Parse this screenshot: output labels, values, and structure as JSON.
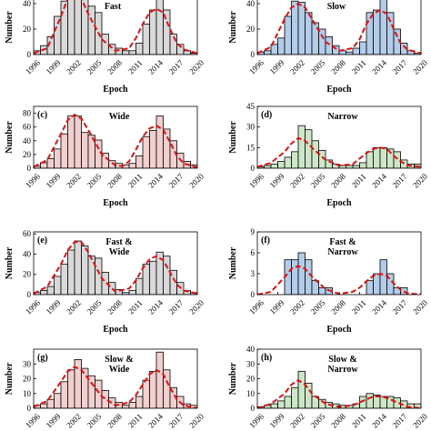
{
  "colors": {
    "gray": "#d9d9d9",
    "blue": "#b3cce8",
    "pink": "#f2d0d0",
    "green": "#cde6c8",
    "curve": "#dd1111",
    "edge": "#000000"
  },
  "chart_data": [
    {
      "type": "bar",
      "panel_tag": "",
      "panel_name": "Fast",
      "name_lines": [
        "Fast"
      ],
      "fill": "gray",
      "xlabel": "Epoch",
      "ylabel": "Number",
      "xlim": [
        1996,
        2020
      ],
      "xticks": [
        1996,
        1999,
        2002,
        2005,
        2008,
        2011,
        2014,
        2017,
        2020
      ],
      "ylim": [
        0,
        50
      ],
      "yticks": [
        0,
        20,
        40
      ],
      "bin_width": 1,
      "bin_starts": [
        1996,
        1997,
        1998,
        1999,
        2000,
        2001,
        2002,
        2003,
        2004,
        2005,
        2006,
        2007,
        2008,
        2009,
        2010,
        2011,
        2012,
        2013,
        2014,
        2015,
        2016,
        2017,
        2018,
        2019
      ],
      "values": [
        3,
        7,
        14,
        30,
        42,
        48,
        50,
        44,
        38,
        33,
        16,
        8,
        5,
        3,
        3,
        9,
        24,
        35,
        50,
        35,
        16,
        8,
        3,
        1
      ],
      "fit_curve": [
        {
          "x": 1996,
          "y": 1
        },
        {
          "x": 1998,
          "y": 5
        },
        {
          "x": 2000,
          "y": 30
        },
        {
          "x": 2001,
          "y": 44
        },
        {
          "x": 2002,
          "y": 48
        },
        {
          "x": 2003,
          "y": 44
        },
        {
          "x": 2004,
          "y": 32
        },
        {
          "x": 2006,
          "y": 12
        },
        {
          "x": 2008,
          "y": 3
        },
        {
          "x": 2010,
          "y": 5
        },
        {
          "x": 2011,
          "y": 13
        },
        {
          "x": 2012,
          "y": 24
        },
        {
          "x": 2013,
          "y": 33
        },
        {
          "x": 2014,
          "y": 36
        },
        {
          "x": 2015,
          "y": 33
        },
        {
          "x": 2016,
          "y": 20
        },
        {
          "x": 2017,
          "y": 9
        },
        {
          "x": 2018,
          "y": 4
        },
        {
          "x": 2020,
          "y": 1
        }
      ]
    },
    {
      "type": "bar",
      "panel_tag": "",
      "panel_name": "Slow",
      "name_lines": [
        "Slow"
      ],
      "fill": "blue",
      "xlabel": "Epoch",
      "ylabel": "Number",
      "xlim": [
        1996,
        2020
      ],
      "xticks": [
        1996,
        1999,
        2002,
        2005,
        2008,
        2011,
        2014,
        2017,
        2020
      ],
      "ylim": [
        0,
        50
      ],
      "yticks": [
        0,
        20,
        40
      ],
      "bin_width": 1,
      "bin_starts": [
        1996,
        1997,
        1998,
        1999,
        2000,
        2001,
        2002,
        2003,
        2004,
        2005,
        2006,
        2007,
        2008,
        2009,
        2010,
        2011,
        2012,
        2013,
        2014,
        2015,
        2016,
        2017,
        2018,
        2019
      ],
      "values": [
        2,
        3,
        8,
        13,
        30,
        42,
        41,
        33,
        25,
        20,
        14,
        7,
        3,
        2,
        5,
        10,
        33,
        35,
        47,
        33,
        20,
        9,
        3,
        1
      ],
      "fit_curve": [
        {
          "x": 1996,
          "y": 1
        },
        {
          "x": 1998,
          "y": 6
        },
        {
          "x": 2000,
          "y": 28
        },
        {
          "x": 2001,
          "y": 37
        },
        {
          "x": 2002,
          "y": 40
        },
        {
          "x": 2003,
          "y": 37
        },
        {
          "x": 2004,
          "y": 28
        },
        {
          "x": 2006,
          "y": 10
        },
        {
          "x": 2008,
          "y": 3
        },
        {
          "x": 2010,
          "y": 5
        },
        {
          "x": 2011,
          "y": 12
        },
        {
          "x": 2012,
          "y": 24
        },
        {
          "x": 2013,
          "y": 32
        },
        {
          "x": 2014,
          "y": 35
        },
        {
          "x": 2015,
          "y": 32
        },
        {
          "x": 2016,
          "y": 20
        },
        {
          "x": 2017,
          "y": 9
        },
        {
          "x": 2018,
          "y": 4
        },
        {
          "x": 2020,
          "y": 1
        }
      ]
    },
    {
      "type": "bar",
      "panel_tag": "(c)",
      "panel_name": "Wide",
      "name_lines": [
        "Wide"
      ],
      "fill": "pink",
      "xlabel": "Epoch",
      "ylabel": "Number",
      "xlim": [
        1996,
        2020
      ],
      "xticks": [
        1996,
        1999,
        2002,
        2005,
        2008,
        2011,
        2014,
        2017,
        2020
      ],
      "ylim": [
        0,
        90
      ],
      "yticks": [
        0,
        20,
        40,
        60,
        80
      ],
      "bin_width": 1,
      "bin_starts": [
        1996,
        1997,
        1998,
        1999,
        2000,
        2001,
        2002,
        2003,
        2004,
        2005,
        2006,
        2007,
        2008,
        2009,
        2010,
        2011,
        2012,
        2013,
        2014,
        2015,
        2016,
        2017,
        2018,
        2019
      ],
      "values": [
        3,
        8,
        14,
        28,
        50,
        76,
        76,
        52,
        48,
        41,
        22,
        11,
        7,
        5,
        7,
        18,
        46,
        55,
        76,
        57,
        40,
        22,
        10,
        5
      ],
      "fit_curve": [
        {
          "x": 1996,
          "y": 2
        },
        {
          "x": 1998,
          "y": 12
        },
        {
          "x": 2000,
          "y": 50
        },
        {
          "x": 2001,
          "y": 70
        },
        {
          "x": 2002,
          "y": 78
        },
        {
          "x": 2003,
          "y": 72
        },
        {
          "x": 2004,
          "y": 56
        },
        {
          "x": 2006,
          "y": 20
        },
        {
          "x": 2008,
          "y": 4
        },
        {
          "x": 2009,
          "y": 3
        },
        {
          "x": 2010,
          "y": 10
        },
        {
          "x": 2011,
          "y": 27
        },
        {
          "x": 2012,
          "y": 46
        },
        {
          "x": 2013,
          "y": 58
        },
        {
          "x": 2014,
          "y": 62
        },
        {
          "x": 2015,
          "y": 56
        },
        {
          "x": 2016,
          "y": 38
        },
        {
          "x": 2017,
          "y": 18
        },
        {
          "x": 2018,
          "y": 7
        },
        {
          "x": 2020,
          "y": 1
        }
      ]
    },
    {
      "type": "bar",
      "panel_tag": "(d)",
      "panel_name": "Narrow",
      "name_lines": [
        "Narrow"
      ],
      "fill": "green",
      "xlabel": "Epoch",
      "ylabel": "Number",
      "xlim": [
        1996,
        2020
      ],
      "xticks": [
        1996,
        1999,
        2002,
        2005,
        2008,
        2011,
        2014,
        2017,
        2020
      ],
      "ylim": [
        0,
        45
      ],
      "yticks": [
        0,
        15,
        30,
        45
      ],
      "bin_width": 1,
      "bin_starts": [
        1996,
        1997,
        1998,
        1999,
        2000,
        2001,
        2002,
        2003,
        2004,
        2005,
        2006,
        2007,
        2008,
        2009,
        2010,
        2011,
        2012,
        2013,
        2014,
        2015,
        2016,
        2017,
        2018,
        2019
      ],
      "values": [
        1,
        2,
        3,
        5,
        8,
        12,
        31,
        28,
        20,
        13,
        6,
        3,
        2,
        2,
        2,
        4,
        12,
        15,
        15,
        14,
        12,
        6,
        3,
        3
      ],
      "fit_curve": [
        {
          "x": 1996,
          "y": 1
        },
        {
          "x": 1998,
          "y": 4
        },
        {
          "x": 2000,
          "y": 12
        },
        {
          "x": 2001,
          "y": 18
        },
        {
          "x": 2002,
          "y": 22
        },
        {
          "x": 2003,
          "y": 20
        },
        {
          "x": 2004,
          "y": 15
        },
        {
          "x": 2006,
          "y": 6
        },
        {
          "x": 2008,
          "y": 2
        },
        {
          "x": 2010,
          "y": 3
        },
        {
          "x": 2011,
          "y": 7
        },
        {
          "x": 2012,
          "y": 11
        },
        {
          "x": 2013,
          "y": 14
        },
        {
          "x": 2014,
          "y": 15
        },
        {
          "x": 2015,
          "y": 14
        },
        {
          "x": 2016,
          "y": 9
        },
        {
          "x": 2017,
          "y": 5
        },
        {
          "x": 2018,
          "y": 2
        },
        {
          "x": 2020,
          "y": 1
        }
      ]
    },
    {
      "type": "bar",
      "panel_tag": "(e)",
      "panel_name": "Fast & Wide",
      "name_lines": [
        "Fast &",
        "Wide"
      ],
      "fill": "gray",
      "xlabel": "Epoch",
      "ylabel": "Number",
      "xlim": [
        1996,
        2020
      ],
      "xticks": [
        1996,
        1999,
        2002,
        2005,
        2008,
        2011,
        2014,
        2017,
        2020
      ],
      "ylim": [
        0,
        62
      ],
      "yticks": [
        0,
        20,
        40,
        60
      ],
      "bin_width": 1,
      "bin_starts": [
        1996,
        1997,
        1998,
        1999,
        2000,
        2001,
        2002,
        2003,
        2004,
        2005,
        2006,
        2007,
        2008,
        2009,
        2010,
        2011,
        2012,
        2013,
        2014,
        2015,
        2016,
        2017,
        2018,
        2019
      ],
      "values": [
        2,
        4,
        8,
        18,
        30,
        44,
        53,
        48,
        38,
        36,
        22,
        12,
        5,
        2,
        4,
        16,
        30,
        33,
        42,
        38,
        24,
        12,
        4,
        2
      ],
      "fit_curve": [
        {
          "x": 1996,
          "y": 1
        },
        {
          "x": 1998,
          "y": 8
        },
        {
          "x": 2000,
          "y": 30
        },
        {
          "x": 2001,
          "y": 44
        },
        {
          "x": 2002,
          "y": 52
        },
        {
          "x": 2003,
          "y": 52
        },
        {
          "x": 2004,
          "y": 42
        },
        {
          "x": 2006,
          "y": 16
        },
        {
          "x": 2008,
          "y": 3
        },
        {
          "x": 2010,
          "y": 6
        },
        {
          "x": 2011,
          "y": 14
        },
        {
          "x": 2012,
          "y": 26
        },
        {
          "x": 2013,
          "y": 35
        },
        {
          "x": 2014,
          "y": 38
        },
        {
          "x": 2015,
          "y": 34
        },
        {
          "x": 2016,
          "y": 22
        },
        {
          "x": 2017,
          "y": 10
        },
        {
          "x": 2018,
          "y": 4
        },
        {
          "x": 2020,
          "y": 1
        }
      ]
    },
    {
      "type": "bar",
      "panel_tag": "(f)",
      "panel_name": "Fast & Narrow",
      "name_lines": [
        "Fast &",
        "Narrow"
      ],
      "fill": "blue",
      "xlabel": "Epoch",
      "ylabel": "Number",
      "xlim": [
        1996,
        2020
      ],
      "xticks": [
        1996,
        1999,
        2002,
        2005,
        2008,
        2011,
        2014,
        2017,
        2020
      ],
      "ylim": [
        0,
        9
      ],
      "yticks": [
        0,
        3,
        6,
        9
      ],
      "bin_width": 1,
      "bin_starts": [
        1996,
        1997,
        1998,
        1999,
        2000,
        2001,
        2002,
        2003,
        2004,
        2005,
        2006,
        2007,
        2008,
        2009,
        2010,
        2011,
        2012,
        2013,
        2014,
        2015,
        2016,
        2017,
        2018,
        2019
      ],
      "values": [
        0,
        0,
        0,
        0,
        5,
        5,
        6,
        5,
        2,
        1,
        1,
        0,
        0,
        0,
        0,
        0,
        2,
        3,
        5,
        3,
        1,
        1,
        0,
        0
      ],
      "fit_curve": [
        {
          "x": 1996,
          "y": 0
        },
        {
          "x": 1998,
          "y": 0.4
        },
        {
          "x": 2000,
          "y": 2.5
        },
        {
          "x": 2001,
          "y": 3.7
        },
        {
          "x": 2002,
          "y": 4.1
        },
        {
          "x": 2003,
          "y": 3.7
        },
        {
          "x": 2004,
          "y": 2.6
        },
        {
          "x": 2006,
          "y": 0.8
        },
        {
          "x": 2008,
          "y": 0.1
        },
        {
          "x": 2010,
          "y": 0.4
        },
        {
          "x": 2011,
          "y": 1.0
        },
        {
          "x": 2012,
          "y": 1.9
        },
        {
          "x": 2013,
          "y": 2.7
        },
        {
          "x": 2014,
          "y": 3.0
        },
        {
          "x": 2015,
          "y": 2.7
        },
        {
          "x": 2016,
          "y": 1.6
        },
        {
          "x": 2017,
          "y": 0.7
        },
        {
          "x": 2018,
          "y": 0.2
        },
        {
          "x": 2020,
          "y": 0
        }
      ]
    },
    {
      "type": "bar",
      "panel_tag": "(g)",
      "panel_name": "Slow & Wide",
      "name_lines": [
        "Slow &",
        "Wide"
      ],
      "fill": "pink",
      "xlabel": "Epoch",
      "ylabel": "Number",
      "xlim": [
        1996,
        2020
      ],
      "xticks": [
        1996,
        1999,
        2002,
        2005,
        2008,
        2011,
        2014,
        2017,
        2020
      ],
      "ylim": [
        0,
        40
      ],
      "yticks": [
        0,
        10,
        20,
        30
      ],
      "bin_width": 1,
      "bin_starts": [
        1996,
        1997,
        1998,
        1999,
        2000,
        2001,
        2002,
        2003,
        2004,
        2005,
        2006,
        2007,
        2008,
        2009,
        2010,
        2011,
        2012,
        2013,
        2014,
        2015,
        2016,
        2017,
        2018,
        2019
      ],
      "values": [
        2,
        3,
        6,
        10,
        18,
        26,
        33,
        27,
        22,
        19,
        12,
        7,
        4,
        2,
        4,
        8,
        19,
        25,
        38,
        26,
        14,
        8,
        3,
        2
      ],
      "fit_curve": [
        {
          "x": 1996,
          "y": 1
        },
        {
          "x": 1998,
          "y": 5
        },
        {
          "x": 2000,
          "y": 18
        },
        {
          "x": 2001,
          "y": 25
        },
        {
          "x": 2002,
          "y": 28
        },
        {
          "x": 2003,
          "y": 26
        },
        {
          "x": 2004,
          "y": 20
        },
        {
          "x": 2006,
          "y": 8
        },
        {
          "x": 2008,
          "y": 2
        },
        {
          "x": 2010,
          "y": 4
        },
        {
          "x": 2011,
          "y": 9
        },
        {
          "x": 2012,
          "y": 16
        },
        {
          "x": 2013,
          "y": 23
        },
        {
          "x": 2014,
          "y": 26
        },
        {
          "x": 2015,
          "y": 23
        },
        {
          "x": 2016,
          "y": 14
        },
        {
          "x": 2017,
          "y": 6
        },
        {
          "x": 2018,
          "y": 2
        },
        {
          "x": 2020,
          "y": 0
        }
      ]
    },
    {
      "type": "bar",
      "panel_tag": "(h)",
      "panel_name": "Slow & Narrow",
      "name_lines": [
        "Slow &",
        "Narrow"
      ],
      "fill": "green",
      "xlabel": "",
      "ylabel": "Number",
      "xlim": [
        1996,
        2020
      ],
      "xticks": [
        1996,
        1999,
        2002,
        2005,
        2008,
        2011,
        2014,
        2017,
        2020
      ],
      "ylim": [
        0,
        40
      ],
      "yticks": [
        0,
        10,
        20,
        30,
        40
      ],
      "bin_width": 1,
      "bin_starts": [
        1996,
        1997,
        1998,
        1999,
        2000,
        2001,
        2002,
        2003,
        2004,
        2005,
        2006,
        2007,
        2008,
        2009,
        2010,
        2011,
        2012,
        2013,
        2014,
        2015,
        2016,
        2017,
        2018,
        2019
      ],
      "values": [
        1,
        2,
        3,
        5,
        8,
        14,
        25,
        17,
        8,
        6,
        4,
        3,
        2,
        2,
        3,
        8,
        10,
        9,
        8,
        8,
        7,
        5,
        3,
        3
      ],
      "fit_curve": [
        {
          "x": 1996,
          "y": 0
        },
        {
          "x": 1998,
          "y": 3
        },
        {
          "x": 2000,
          "y": 10
        },
        {
          "x": 2001,
          "y": 16
        },
        {
          "x": 2002,
          "y": 19
        },
        {
          "x": 2003,
          "y": 16
        },
        {
          "x": 2004,
          "y": 10
        },
        {
          "x": 2006,
          "y": 3
        },
        {
          "x": 2008,
          "y": 1
        },
        {
          "x": 2010,
          "y": 2
        },
        {
          "x": 2011,
          "y": 4
        },
        {
          "x": 2012,
          "y": 6
        },
        {
          "x": 2013,
          "y": 8
        },
        {
          "x": 2014,
          "y": 8
        },
        {
          "x": 2015,
          "y": 7
        },
        {
          "x": 2016,
          "y": 5
        },
        {
          "x": 2017,
          "y": 3
        },
        {
          "x": 2018,
          "y": 1
        },
        {
          "x": 2020,
          "y": 0
        }
      ]
    }
  ]
}
